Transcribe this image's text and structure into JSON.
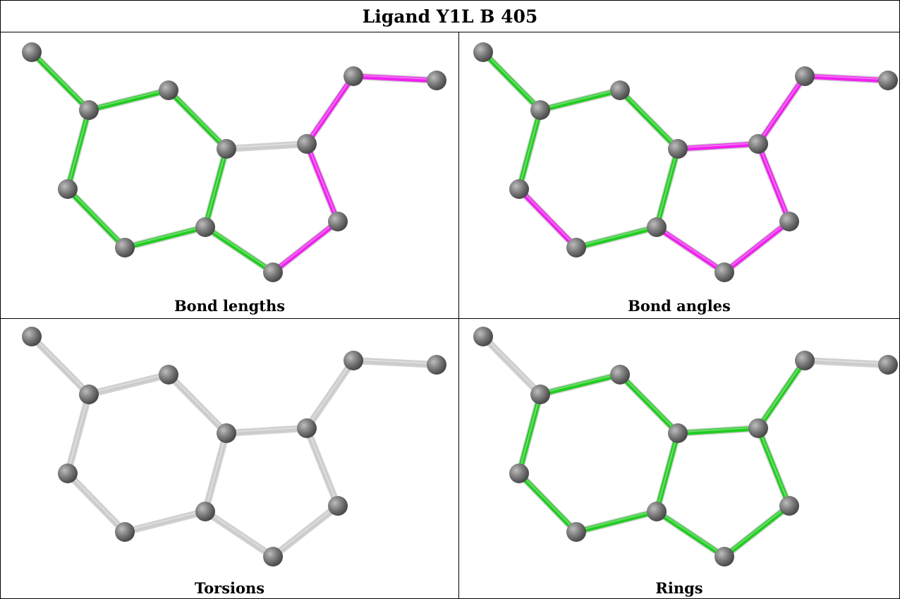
{
  "title": "Ligand Y1L B 405",
  "colors": {
    "pass": "#22cc22",
    "outlier": "#ee22ee",
    "unassessed": "#cccccc",
    "atom": "#7a7a7a"
  },
  "panels": [
    {
      "caption": "Bond lengths",
      "bond_status": [
        "pass",
        "pass",
        "pass",
        "pass",
        "pass",
        "pass",
        "pass",
        "unassessed",
        "unassessed",
        "pass",
        "outlier",
        "outlier",
        "outlier",
        "outlier",
        "pass"
      ]
    },
    {
      "caption": "Bond angles",
      "bond_status": [
        "pass",
        "pass",
        "pass",
        "pass",
        "pass",
        "outlier",
        "pass",
        "outlier",
        "pass",
        "outlier",
        "outlier",
        "outlier",
        "outlier",
        "outlier",
        "outlier"
      ]
    },
    {
      "caption": "Torsions",
      "bond_status": [
        "unassessed",
        "unassessed",
        "unassessed",
        "unassessed",
        "unassessed",
        "unassessed",
        "unassessed",
        "unassessed",
        "unassessed",
        "unassessed",
        "unassessed",
        "unassessed",
        "unassessed",
        "unassessed",
        "unassessed"
      ]
    },
    {
      "caption": "Rings",
      "bond_status": [
        "unassessed",
        "pass",
        "pass",
        "pass",
        "pass",
        "pass",
        "pass",
        "pass",
        "pass",
        "pass",
        "pass",
        "pass",
        "pass",
        "unassessed",
        "unassessed"
      ]
    }
  ]
}
